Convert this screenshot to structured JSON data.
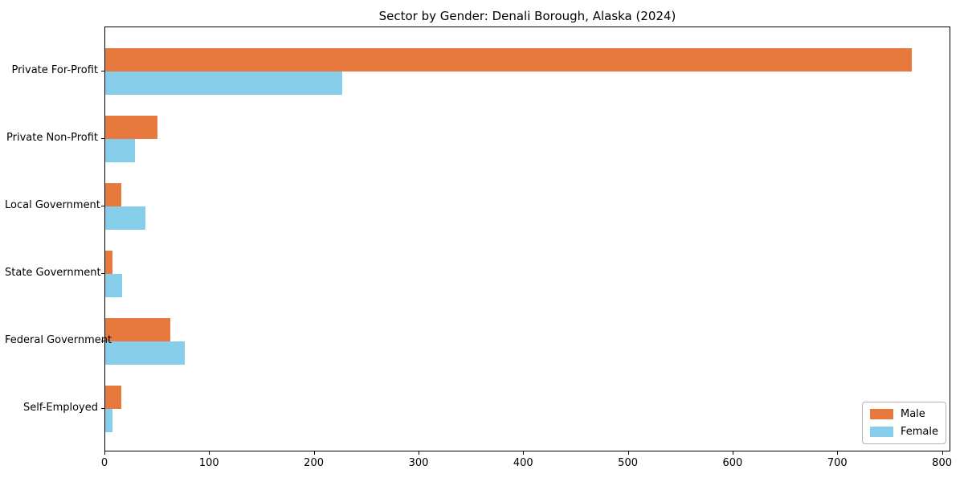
{
  "chart_data": {
    "type": "bar",
    "orientation": "horizontal",
    "title": "Sector by Gender: Denali Borough, Alaska (2024)",
    "categories": [
      "Private For-Profit",
      "Private Non-Profit",
      "Local Government",
      "State Government",
      "Federal Government",
      "Self-Employed"
    ],
    "series": [
      {
        "name": "Male",
        "color": "#E8793E",
        "values": [
          770,
          50,
          15,
          7,
          62,
          15
        ]
      },
      {
        "name": "Female",
        "color": "#87CEEB",
        "values": [
          226,
          28,
          38,
          16,
          76,
          7
        ]
      }
    ],
    "xlabel": "",
    "ylabel": "",
    "xlim": [
      0,
      808
    ],
    "xticks": [
      0,
      100,
      200,
      300,
      400,
      500,
      600,
      700,
      800
    ],
    "grid": false,
    "legend": {
      "position": "lower right",
      "entries": [
        "Male",
        "Female"
      ]
    },
    "colors": {
      "background": "#ffffff",
      "spine": "#000000",
      "legend_border": "#b3b3b3"
    }
  }
}
